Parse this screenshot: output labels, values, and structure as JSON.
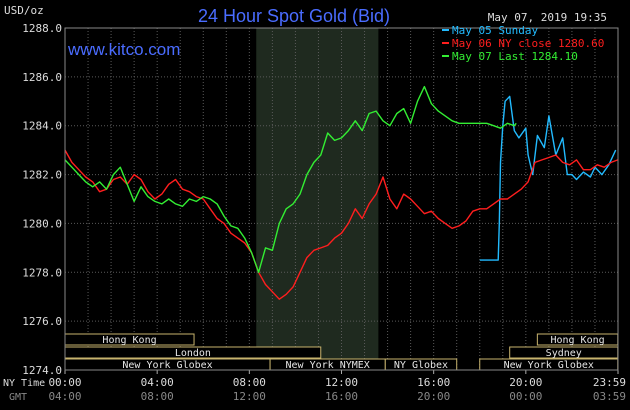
{
  "chart_data": {
    "type": "line",
    "title": "24 Hour Spot Gold (Bid)",
    "website": "www.kitco.com",
    "timestamp": "May 07, 2019 19:35",
    "ylabel": "USD/oz",
    "ylim": [
      1274.0,
      1288.0
    ],
    "yticks": [
      "1288.0",
      "1286.0",
      "1284.0",
      "1282.0",
      "1280.0",
      "1278.0",
      "1276.0",
      "1274.0"
    ],
    "xlim": [
      0,
      24
    ],
    "x_tick_positions": [
      0,
      4,
      8,
      12,
      16,
      20,
      24
    ],
    "ny_time_label": "NY Time",
    "gmt_label": "GMT",
    "ny_time_ticks": [
      "00:00",
      "04:00",
      "08:00",
      "12:00",
      "16:00",
      "20:00",
      "23:59"
    ],
    "gmt_ticks": [
      "04:00",
      "08:00",
      "12:00",
      "16:00",
      "20:00",
      "00:00",
      "03:59"
    ],
    "highlight_hours": [
      8.3,
      13.6
    ],
    "grid": true,
    "legend_position": "top-right",
    "series": [
      {
        "name": "May 05 Sunday",
        "color": "#22bbff",
        "x": [
          18.0,
          18.8,
          18.85,
          18.9,
          19.0,
          19.1,
          19.3,
          19.5,
          19.7,
          20.0,
          20.1,
          20.3,
          20.5,
          20.8,
          21.0,
          21.3,
          21.6,
          21.8,
          22.0,
          22.2,
          22.5,
          22.8,
          23.0,
          23.3,
          23.6,
          23.9
        ],
        "y": [
          1278.5,
          1278.5,
          1280.0,
          1282.5,
          1284.0,
          1285.0,
          1285.2,
          1283.8,
          1283.5,
          1283.9,
          1282.8,
          1282.0,
          1283.6,
          1283.1,
          1284.4,
          1282.8,
          1283.5,
          1282.0,
          1282.0,
          1281.8,
          1282.1,
          1281.9,
          1282.3,
          1282.0,
          1282.4,
          1283.0
        ]
      },
      {
        "name": "May 06 NY close 1280.60",
        "color": "#ff1e1e",
        "x": [
          0.0,
          0.3,
          0.6,
          0.9,
          1.2,
          1.5,
          1.8,
          2.1,
          2.4,
          2.7,
          3.0,
          3.3,
          3.6,
          3.9,
          4.2,
          4.5,
          4.8,
          5.1,
          5.4,
          5.7,
          6.0,
          6.3,
          6.6,
          6.9,
          7.2,
          7.5,
          7.8,
          8.1,
          8.4,
          8.7,
          9.0,
          9.3,
          9.6,
          9.9,
          10.2,
          10.5,
          10.8,
          11.1,
          11.4,
          11.7,
          12.0,
          12.3,
          12.6,
          12.9,
          13.2,
          13.5,
          13.8,
          14.1,
          14.4,
          14.7,
          15.0,
          15.3,
          15.6,
          15.9,
          16.2,
          16.5,
          16.8,
          17.1,
          17.4,
          17.7,
          18.0,
          18.3,
          18.6,
          18.9,
          19.2,
          19.5,
          19.8,
          20.1,
          20.4,
          20.7,
          21.0,
          21.3,
          21.6,
          21.9,
          22.2,
          22.5,
          22.8,
          23.1,
          23.4,
          23.7,
          23.99
        ],
        "y": [
          1283.0,
          1282.5,
          1282.2,
          1281.9,
          1281.7,
          1281.3,
          1281.4,
          1281.8,
          1281.9,
          1281.6,
          1282.0,
          1281.8,
          1281.3,
          1281.0,
          1281.2,
          1281.6,
          1281.8,
          1281.4,
          1281.3,
          1281.1,
          1281.0,
          1280.6,
          1280.2,
          1280.0,
          1279.6,
          1279.4,
          1279.2,
          1278.8,
          1278.0,
          1277.5,
          1277.2,
          1276.9,
          1277.1,
          1277.4,
          1278.0,
          1278.6,
          1278.9,
          1279.0,
          1279.1,
          1279.4,
          1279.6,
          1280.0,
          1280.6,
          1280.2,
          1280.8,
          1281.2,
          1281.9,
          1281.0,
          1280.6,
          1281.2,
          1281.0,
          1280.7,
          1280.4,
          1280.5,
          1280.2,
          1280.0,
          1279.8,
          1279.9,
          1280.1,
          1280.5,
          1280.6,
          1280.6,
          1280.8,
          1281.0,
          1281.0,
          1281.2,
          1281.4,
          1281.7,
          1282.5,
          1282.6,
          1282.7,
          1282.8,
          1282.5,
          1282.4,
          1282.6,
          1282.2,
          1282.2,
          1282.4,
          1282.3,
          1282.5,
          1282.6
        ]
      },
      {
        "name": "May 07 Last 1284.10",
        "color": "#33ee33",
        "x": [
          0.0,
          0.3,
          0.6,
          0.9,
          1.2,
          1.5,
          1.8,
          2.1,
          2.4,
          2.7,
          3.0,
          3.3,
          3.6,
          3.9,
          4.2,
          4.5,
          4.8,
          5.1,
          5.4,
          5.7,
          6.0,
          6.3,
          6.6,
          6.9,
          7.2,
          7.5,
          7.8,
          8.1,
          8.4,
          8.7,
          9.0,
          9.3,
          9.6,
          9.9,
          10.2,
          10.5,
          10.8,
          11.1,
          11.4,
          11.7,
          12.0,
          12.3,
          12.6,
          12.9,
          13.2,
          13.5,
          13.8,
          14.1,
          14.4,
          14.7,
          15.0,
          15.3,
          15.6,
          15.9,
          16.2,
          16.5,
          16.8,
          17.1,
          17.4,
          17.7,
          18.0,
          18.3,
          18.6,
          18.9,
          19.2,
          19.5,
          19.58
        ],
        "y": [
          1282.6,
          1282.3,
          1282.0,
          1281.7,
          1281.5,
          1281.7,
          1281.4,
          1282.0,
          1282.3,
          1281.6,
          1280.9,
          1281.5,
          1281.1,
          1280.9,
          1280.8,
          1281.0,
          1280.8,
          1280.7,
          1281.0,
          1280.9,
          1281.1,
          1281.0,
          1280.8,
          1280.3,
          1279.9,
          1279.8,
          1279.4,
          1278.8,
          1278.0,
          1279.0,
          1278.9,
          1280.0,
          1280.6,
          1280.8,
          1281.2,
          1282.0,
          1282.5,
          1282.8,
          1283.7,
          1283.4,
          1283.5,
          1283.8,
          1284.2,
          1283.8,
          1284.5,
          1284.6,
          1284.2,
          1284.0,
          1284.5,
          1284.7,
          1284.1,
          1285.0,
          1285.6,
          1284.9,
          1284.6,
          1284.4,
          1284.2,
          1284.1,
          1284.1,
          1284.1,
          1284.1,
          1284.1,
          1284.0,
          1283.9,
          1284.1,
          1284.0,
          1284.1
        ]
      }
    ],
    "sessions_row1": [
      {
        "label": "Hong Kong",
        "start": 0,
        "end": 5.6
      },
      {
        "label": "Hong Kong",
        "start": 20.5,
        "end": 23.99
      }
    ],
    "sessions_row2": [
      {
        "label": "London",
        "start": 0,
        "end": 11.1
      },
      {
        "label": "Sydney",
        "start": 19.3,
        "end": 23.99
      }
    ],
    "sessions_row3": [
      {
        "label": "New York Globex",
        "start": 0,
        "end": 8.9
      },
      {
        "label": "New York NYMEX",
        "start": 8.9,
        "end": 13.9
      },
      {
        "label": "NY Globex",
        "start": 13.9,
        "end": 17.0
      },
      {
        "label": "New York Globex",
        "start": 18.0,
        "end": 23.99
      }
    ]
  }
}
